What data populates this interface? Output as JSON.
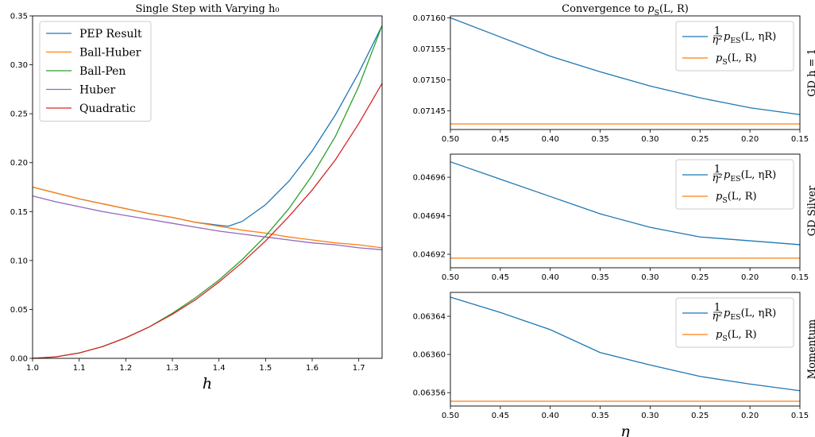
{
  "chart_data": [
    {
      "type": "line",
      "title": "Single Step with Varying h₀",
      "xlabel": "h",
      "ylabel": "",
      "xlim": [
        1.0,
        1.75
      ],
      "ylim": [
        0.0,
        0.35
      ],
      "xticks": [
        "1.0",
        "1.1",
        "1.2",
        "1.3",
        "1.4",
        "1.5",
        "1.6",
        "1.7"
      ],
      "yticks": [
        "0.00",
        "0.05",
        "0.10",
        "0.15",
        "0.20",
        "0.25",
        "0.30",
        "0.35"
      ],
      "legend_position": "top-left",
      "grid": false,
      "series": [
        {
          "name": "PEP Result",
          "color": "#1f77b4",
          "x": [
            1.0,
            1.05,
            1.1,
            1.15,
            1.2,
            1.25,
            1.3,
            1.35,
            1.4,
            1.42,
            1.45,
            1.5,
            1.55,
            1.6,
            1.65,
            1.7,
            1.75
          ],
          "y": [
            0.175,
            0.169,
            0.163,
            0.158,
            0.153,
            0.148,
            0.144,
            0.139,
            0.136,
            0.135,
            0.14,
            0.157,
            0.181,
            0.212,
            0.249,
            0.292,
            0.34
          ]
        },
        {
          "name": "Ball-Huber",
          "color": "#ff7f0e",
          "x": [
            1.0,
            1.05,
            1.1,
            1.15,
            1.2,
            1.25,
            1.3,
            1.35,
            1.4,
            1.45,
            1.5,
            1.55,
            1.6,
            1.65,
            1.7,
            1.75
          ],
          "y": [
            0.175,
            0.169,
            0.163,
            0.158,
            0.153,
            0.148,
            0.144,
            0.139,
            0.135,
            0.131,
            0.128,
            0.124,
            0.121,
            0.118,
            0.116,
            0.113
          ]
        },
        {
          "name": "Ball-Pen",
          "color": "#2ca02c",
          "x": [
            1.0,
            1.05,
            1.1,
            1.15,
            1.2,
            1.25,
            1.3,
            1.35,
            1.4,
            1.45,
            1.5,
            1.55,
            1.6,
            1.65,
            1.7,
            1.75
          ],
          "y": [
            0.0,
            0.0015,
            0.0055,
            0.012,
            0.021,
            0.032,
            0.046,
            0.062,
            0.08,
            0.101,
            0.125,
            0.153,
            0.187,
            0.227,
            0.278,
            0.34
          ]
        },
        {
          "name": "Huber",
          "color": "#9467bd",
          "x": [
            1.0,
            1.05,
            1.1,
            1.15,
            1.2,
            1.25,
            1.3,
            1.35,
            1.4,
            1.45,
            1.5,
            1.55,
            1.6,
            1.65,
            1.7,
            1.75
          ],
          "y": [
            0.166,
            0.16,
            0.155,
            0.15,
            0.146,
            0.142,
            0.138,
            0.134,
            0.13,
            0.127,
            0.124,
            0.121,
            0.118,
            0.116,
            0.113,
            0.111
          ]
        },
        {
          "name": "Quadratic",
          "color": "#d62728",
          "x": [
            1.0,
            1.05,
            1.1,
            1.15,
            1.2,
            1.25,
            1.3,
            1.35,
            1.4,
            1.45,
            1.5,
            1.55,
            1.6,
            1.65,
            1.7,
            1.75
          ],
          "y": [
            0.0,
            0.0015,
            0.0055,
            0.012,
            0.021,
            0.032,
            0.045,
            0.06,
            0.078,
            0.098,
            0.12,
            0.145,
            0.172,
            0.203,
            0.24,
            0.281
          ]
        }
      ]
    },
    {
      "type": "line",
      "title": "Convergence to p_S(L, R)",
      "title_parts": {
        "pre": "Convergence to ",
        "p": "p",
        "sub": "S",
        "args": "(L, R)"
      },
      "row_label": "GD h = 1",
      "xlabel": "",
      "xlim": [
        0.5,
        0.15
      ],
      "ylim": [
        0.07142,
        0.071603
      ],
      "xticks": [
        "0.50",
        "0.45",
        "0.40",
        "0.35",
        "0.30",
        "0.25",
        "0.20",
        "0.15"
      ],
      "yticks": [
        "0.07145",
        "0.07150",
        "0.07155",
        "0.07160"
      ],
      "legend_position": "top-right",
      "grid": false,
      "series": [
        {
          "name": "(1/η²) p_ES(L, ηR)",
          "color": "#1f77b4",
          "x": [
            0.5,
            0.45,
            0.4,
            0.35,
            0.3,
            0.25,
            0.2,
            0.15
          ],
          "y": [
            0.0716,
            0.071569,
            0.071538,
            0.071513,
            0.07149,
            0.071471,
            0.071455,
            0.071444
          ]
        },
        {
          "name": "p_S(L, R)",
          "color": "#ff7f0e",
          "x": [
            0.5,
            0.15
          ],
          "y": [
            0.071429,
            0.071429
          ]
        }
      ]
    },
    {
      "type": "line",
      "row_label": "GD Silver",
      "xlabel": "",
      "xlim": [
        0.5,
        0.15
      ],
      "ylim": [
        0.046913,
        0.046972
      ],
      "xticks": [
        "0.50",
        "0.45",
        "0.40",
        "0.35",
        "0.30",
        "0.25",
        "0.20",
        "0.15"
      ],
      "yticks": [
        "0.04692",
        "0.04694",
        "0.04696"
      ],
      "legend_position": "top-right",
      "grid": false,
      "series": [
        {
          "name": "(1/η²) p_ES(L, ηR)",
          "color": "#1f77b4",
          "x": [
            0.5,
            0.45,
            0.4,
            0.35,
            0.3,
            0.25,
            0.2,
            0.15
          ],
          "y": [
            0.046968,
            0.046959,
            0.04695,
            0.046941,
            0.046934,
            0.046929,
            0.046927,
            0.046925
          ]
        },
        {
          "name": "p_S(L, R)",
          "color": "#ff7f0e",
          "x": [
            0.5,
            0.15
          ],
          "y": [
            0.046918,
            0.046918
          ]
        }
      ]
    },
    {
      "type": "line",
      "row_label": "Momentum",
      "xlabel": "η",
      "xlim": [
        0.5,
        0.15
      ],
      "ylim": [
        0.063546,
        0.063665
      ],
      "xticks": [
        "0.50",
        "0.45",
        "0.40",
        "0.35",
        "0.30",
        "0.25",
        "0.20",
        "0.15"
      ],
      "yticks": [
        "0.06356",
        "0.06360",
        "0.06364"
      ],
      "legend_position": "top-right",
      "grid": false,
      "series": [
        {
          "name": "(1/η²) p_ES(L, ηR)",
          "color": "#1f77b4",
          "x": [
            0.5,
            0.45,
            0.4,
            0.35,
            0.3,
            0.25,
            0.2,
            0.15
          ],
          "y": [
            0.06366,
            0.063644,
            0.063626,
            0.063602,
            0.063589,
            0.063577,
            0.063569,
            0.063562
          ]
        },
        {
          "name": "p_S(L, R)",
          "color": "#ff7f0e",
          "x": [
            0.5,
            0.15
          ],
          "y": [
            0.063551,
            0.063551
          ]
        }
      ]
    }
  ]
}
